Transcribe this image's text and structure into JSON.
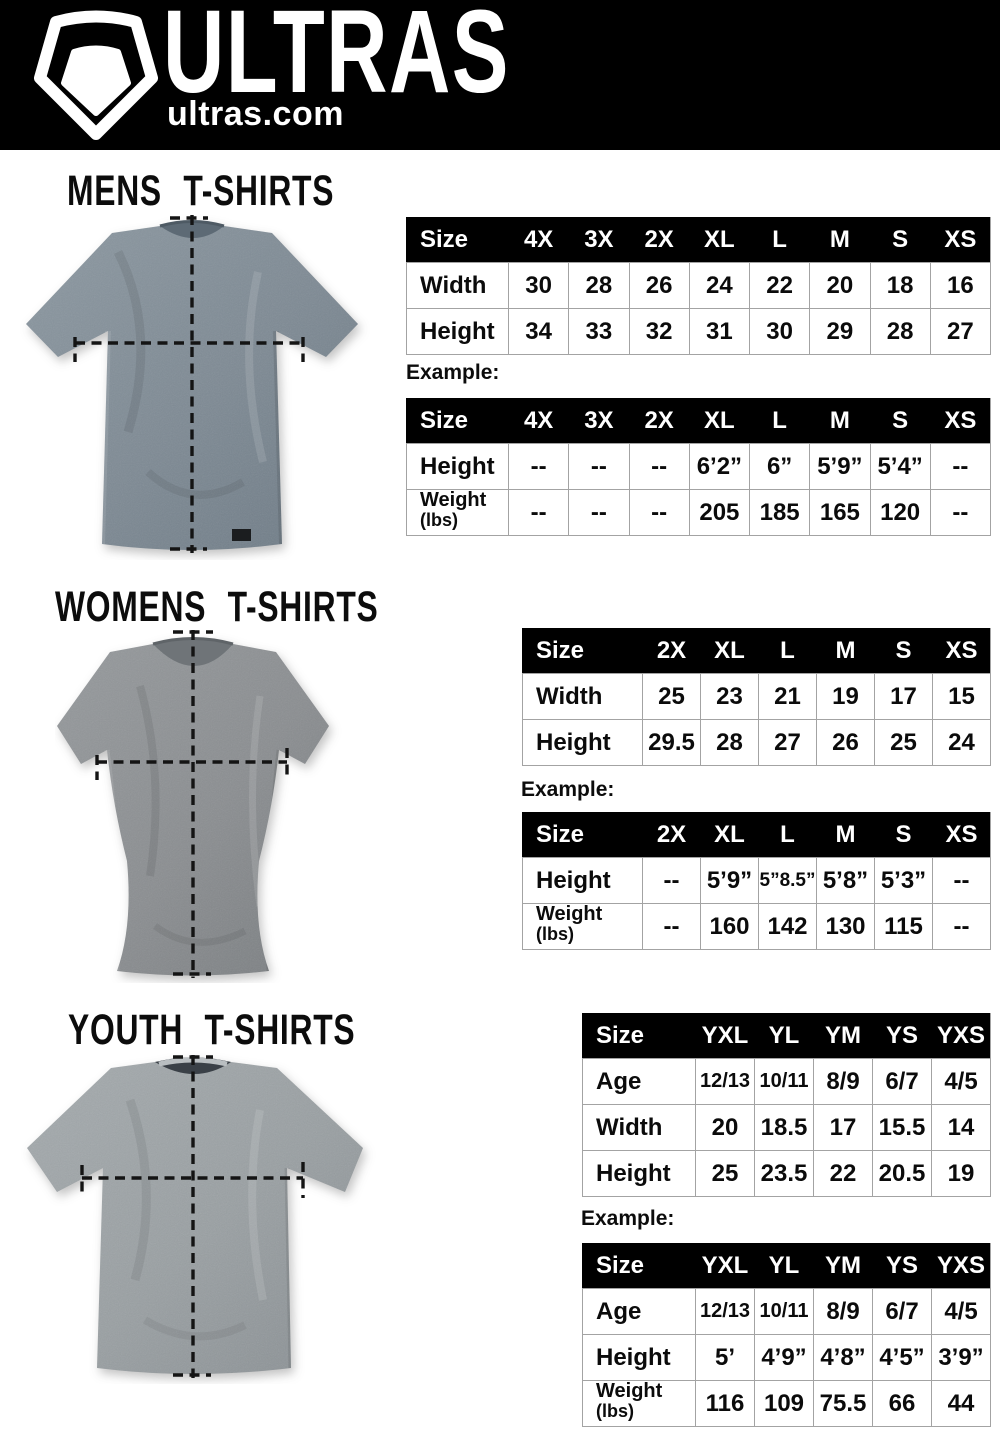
{
  "header": {
    "brand": "ULTRAS",
    "domain": "ultras.com",
    "logo_icon": "pentagon-shield-icon",
    "bg_color": "#000000",
    "text_color": "#ffffff"
  },
  "colors": {
    "table_header_bg": "#000000",
    "table_header_text": "#ffffff",
    "table_border": "#a3a3a3",
    "mens_shirt_gray": "#7e8a94",
    "womens_shirt_gray": "#8b8e91",
    "youth_shirt_gray": "#9aa0a3",
    "measure_line": "#141414"
  },
  "sections": [
    {
      "id": "mens",
      "title": "MENS T-SHIRTS",
      "example_label": "Example:",
      "size_table": {
        "header": [
          "Size",
          "4X",
          "3X",
          "2X",
          "XL",
          "L",
          "M",
          "S",
          "XS"
        ],
        "rows": [
          {
            "label": "Width",
            "values": [
              "30",
              "28",
              "26",
              "24",
              "22",
              "20",
              "18",
              "16"
            ]
          },
          {
            "label": "Height",
            "values": [
              "34",
              "33",
              "32",
              "31",
              "30",
              "29",
              "28",
              "27"
            ]
          }
        ]
      },
      "example_table": {
        "header": [
          "Size",
          "4X",
          "3X",
          "2X",
          "XL",
          "L",
          "M",
          "S",
          "XS"
        ],
        "rows": [
          {
            "label": "Height",
            "values": [
              "--",
              "--",
              "--",
              "6’2”",
              "6”",
              "5’9”",
              "5’4”",
              "--"
            ]
          },
          {
            "label": "Weight",
            "sublabel": "(lbs)",
            "values": [
              "--",
              "--",
              "--",
              "205",
              "185",
              "165",
              "120",
              "--"
            ]
          }
        ]
      }
    },
    {
      "id": "womens",
      "title": "WOMENS T-SHIRTS",
      "example_label": "Example:",
      "size_table": {
        "header": [
          "Size",
          "2X",
          "XL",
          "L",
          "M",
          "S",
          "XS"
        ],
        "rows": [
          {
            "label": "Width",
            "values": [
              "25",
              "23",
              "21",
              "19",
              "17",
              "15"
            ]
          },
          {
            "label": "Height",
            "values": [
              "29.5",
              "28",
              "27",
              "26",
              "25",
              "24"
            ]
          }
        ]
      },
      "example_table": {
        "header": [
          "Size",
          "2X",
          "XL",
          "L",
          "M",
          "S",
          "XS"
        ],
        "rows": [
          {
            "label": "Height",
            "values": [
              "--",
              "5’9”",
              "5”8.5”",
              "5’8”",
              "5’3”",
              "--"
            ]
          },
          {
            "label": "Weight",
            "sublabel": "(lbs)",
            "values": [
              "--",
              "160",
              "142",
              "130",
              "115",
              "--"
            ]
          }
        ]
      }
    },
    {
      "id": "youth",
      "title": "YOUTH T-SHIRTS",
      "example_label": "Example:",
      "size_table": {
        "header": [
          "Size",
          "YXL",
          "YL",
          "YM",
          "YS",
          "YXS"
        ],
        "rows": [
          {
            "label": "Age",
            "values": [
              "12/13",
              "10/11",
              "8/9",
              "6/7",
              "4/5"
            ]
          },
          {
            "label": "Width",
            "values": [
              "20",
              "18.5",
              "17",
              "15.5",
              "14"
            ]
          },
          {
            "label": "Height",
            "values": [
              "25",
              "23.5",
              "22",
              "20.5",
              "19"
            ]
          }
        ]
      },
      "example_table": {
        "header": [
          "Size",
          "YXL",
          "YL",
          "YM",
          "YS",
          "YXS"
        ],
        "rows": [
          {
            "label": "Age",
            "values": [
              "12/13",
              "10/11",
              "8/9",
              "6/7",
              "4/5"
            ]
          },
          {
            "label": "Height",
            "values": [
              "5’",
              "4’9”",
              "4’8”",
              "4’5”",
              "3’9”"
            ]
          },
          {
            "label": "Weight",
            "sublabel": "(lbs)",
            "values": [
              "116",
              "109",
              "75.5",
              "66",
              "44"
            ]
          }
        ]
      }
    }
  ]
}
